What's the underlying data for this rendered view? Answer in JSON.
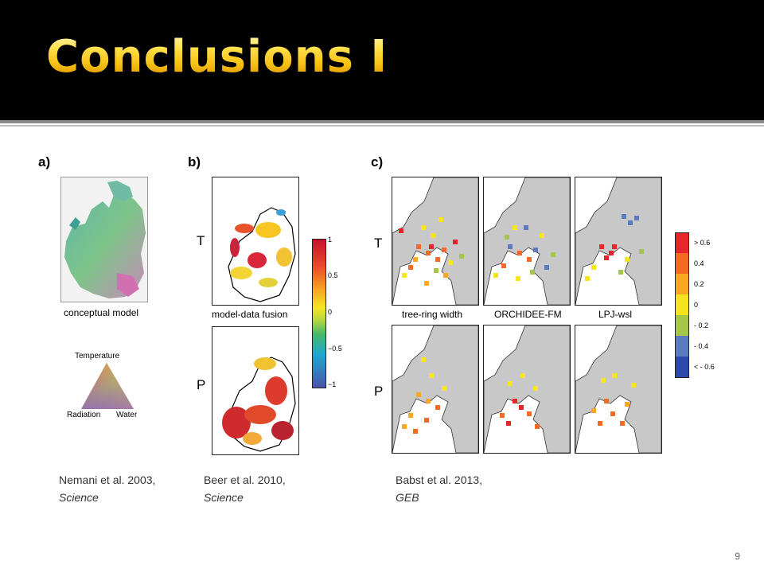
{
  "slide": {
    "title": "Conclusions I",
    "page_number": "9"
  },
  "panel_a": {
    "label": "a)",
    "map_caption": "conceptual model",
    "triangle_labels": {
      "top": "Temperature",
      "left": "Radiation",
      "right": "Water"
    }
  },
  "panel_b": {
    "label": "b)",
    "row_labels": [
      "T",
      "P"
    ],
    "map_caption": "model-data fusion",
    "colorbar_ticks": [
      "1",
      "0.5",
      "0",
      "−0.5",
      "−1"
    ]
  },
  "panel_c": {
    "label": "c)",
    "row_labels": [
      "T",
      "P"
    ],
    "map_captions": [
      "tree-ring width",
      "ORCHIDEE-FM",
      "LPJ-wsl"
    ],
    "legend": [
      {
        "label": "> 0.6",
        "color": "#e8252b"
      },
      {
        "label": "0.4",
        "color": "#f26a23"
      },
      {
        "label": "0.2",
        "color": "#f9a825"
      },
      {
        "label": "0",
        "color": "#f6e51e"
      },
      {
        "label": "- 0.2",
        "color": "#a5c64a"
      },
      {
        "label": "- 0.4",
        "color": "#5b7bc1"
      },
      {
        "label": "< - 0.6",
        "color": "#2b4aa8"
      }
    ]
  },
  "references": [
    {
      "authors": "Nemani et al. 2003,",
      "journal": "Science"
    },
    {
      "authors": "Beer et al. 2010,",
      "journal": "Science"
    },
    {
      "authors": "Babst et al. 2013,",
      "journal": "GEB"
    }
  ]
}
